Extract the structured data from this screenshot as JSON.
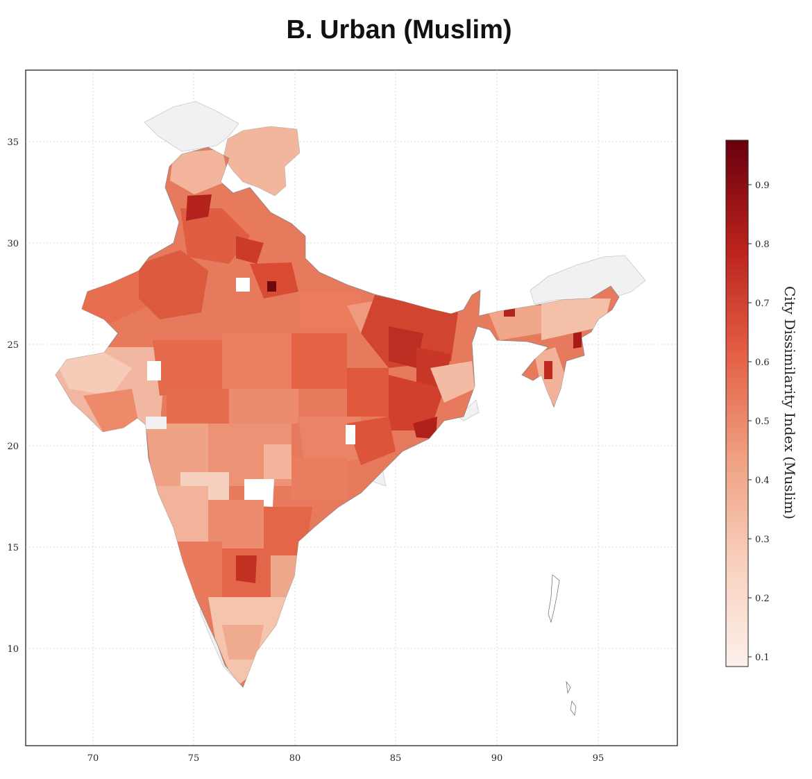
{
  "title": "B. Urban (Muslim)",
  "map": {
    "x_ticks": [
      "70",
      "75",
      "80",
      "85",
      "90",
      "95"
    ],
    "y_ticks": [
      "35",
      "30",
      "25",
      "20",
      "15",
      "10"
    ],
    "x_range": [
      66.7,
      99.0
    ],
    "y_range": [
      5.4,
      38.7
    ],
    "grid": true
  },
  "colorbar": {
    "label": "City Dissimilarity Index (Muslim)",
    "ticks": [
      "0.9",
      "0.8",
      "0.7",
      "0.6",
      "0.5",
      "0.4",
      "0.3",
      "0.2",
      "0.1"
    ],
    "range": [
      0.08,
      0.97
    ],
    "colormap": "Reds",
    "colors": [
      "#fdf0ea",
      "#f6c7b0",
      "#ee8f6e",
      "#e2553c",
      "#c0251d",
      "#67000d"
    ]
  }
}
